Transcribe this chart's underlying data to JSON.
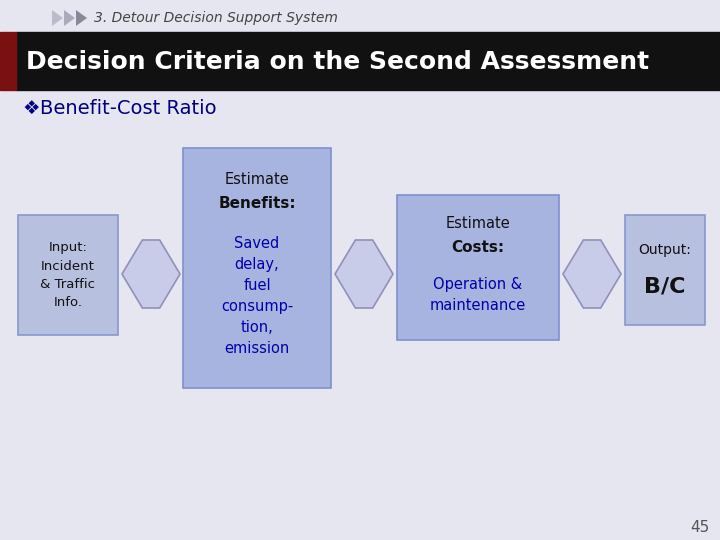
{
  "bg_color": "#e6e6f0",
  "header_bg": "#111111",
  "header_text": "Decision Criteria on the Second Assessment",
  "header_text_color": "#ffffff",
  "header_left_bar_color": "#7a1010",
  "top_label": "3. Detour Decision Support System",
  "bullet_symbol": "❖",
  "bullet_main": "Benefit-Cost Ratio",
  "bullet_color": "#000080",
  "box1_text": "Input:\nIncident\n& Traffic\nInfo.",
  "box1_bg": "#b8c0e0",
  "box1_border": "#8898cc",
  "box2_line1": "Estimate",
  "box2_line2": "Benefits:",
  "box2_line3": "Saved\ndelay,\nfuel\nconsump-\ntion,\nemission",
  "box2_bg": "#a8b4e0",
  "box2_border": "#8090cc",
  "box3_line1": "Estimate",
  "box3_line2": "Costs:",
  "box3_line3": "Operation &\nmaintenance",
  "box3_bg": "#a8b4e0",
  "box3_border": "#8090cc",
  "box4_line1": "Output:",
  "box4_line2": "B/C",
  "box4_bg": "#b8c0e0",
  "box4_border": "#8898cc",
  "arrow_color": "#c8cce8",
  "arrow_border": "#9090bb",
  "text_dark": "#111111",
  "text_blue": "#0000aa",
  "page_number": "45",
  "arrow_gray_light": "#ccccdd",
  "top_arrow_colors": [
    "#bbbbcc",
    "#aaaabc",
    "#888899"
  ]
}
